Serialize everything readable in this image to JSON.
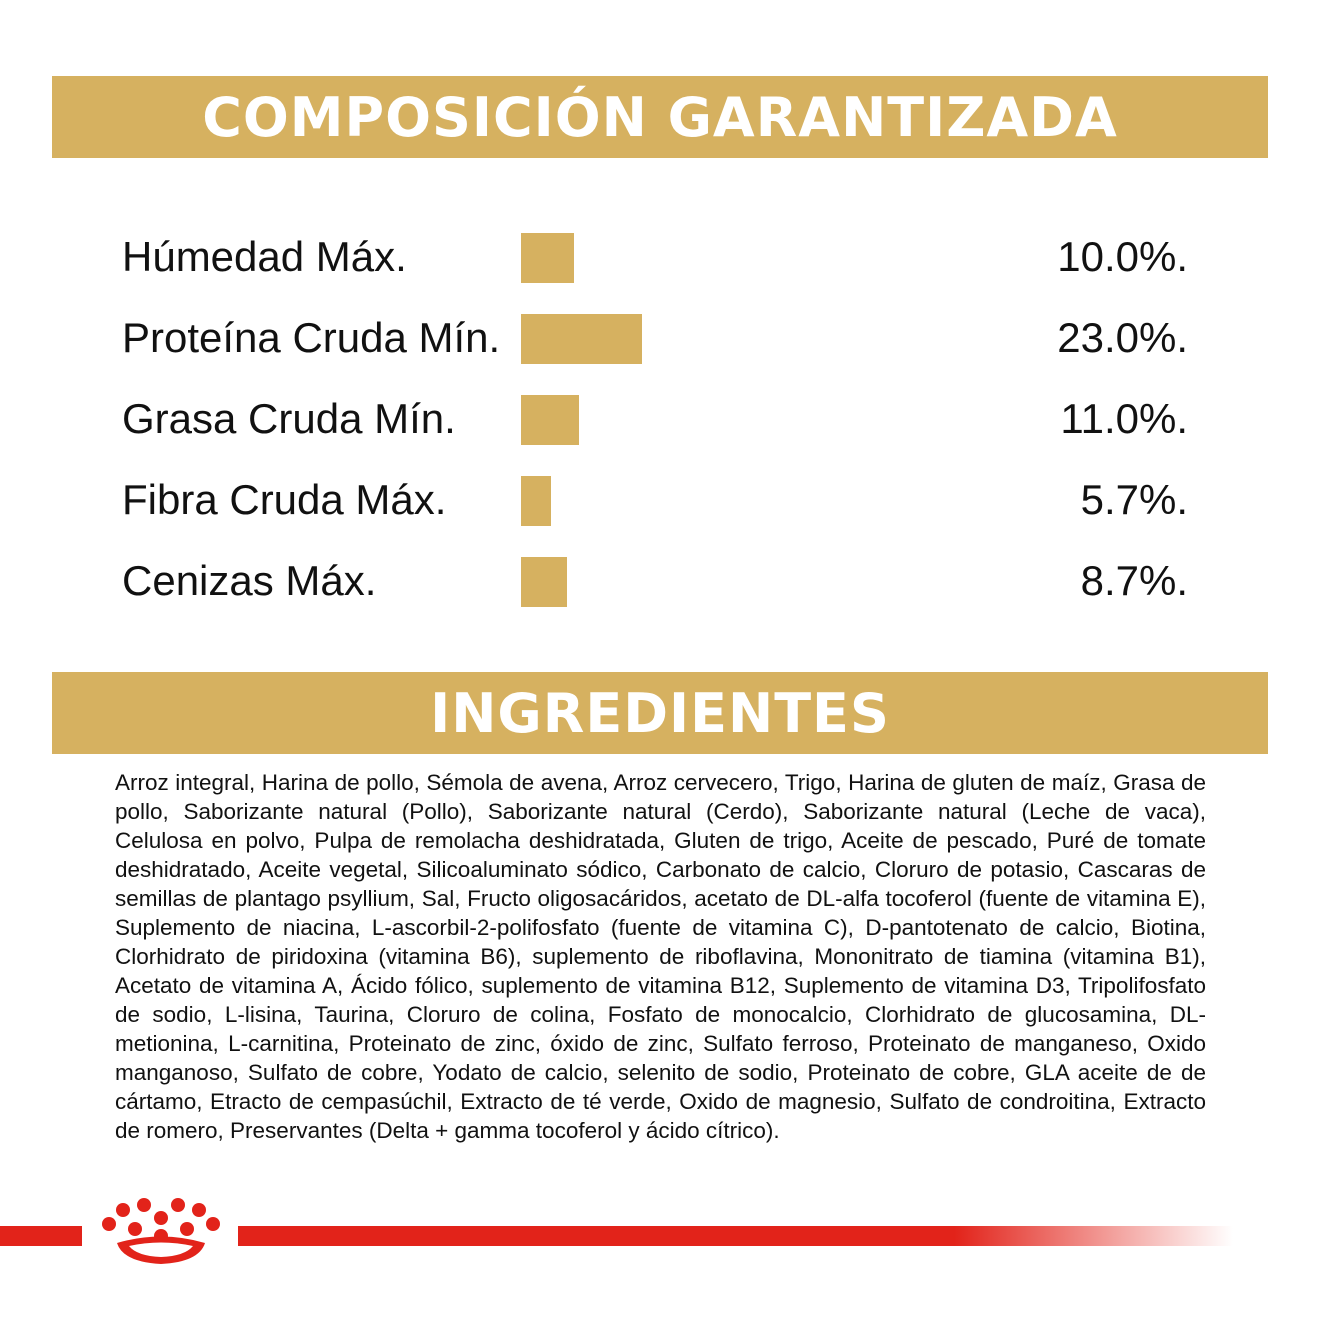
{
  "colors": {
    "gold": "#d6b160",
    "red": "#e2231a",
    "text": "#111111"
  },
  "composition": {
    "title": "COMPOSICIÓN GARANTIZADA",
    "rows": [
      {
        "label": "Húmedad Máx.",
        "value_text": "10.0%.",
        "value": 10.0
      },
      {
        "label": "Proteína Cruda Mín.",
        "value_text": "23.0%.",
        "value": 23.0
      },
      {
        "label": "Grasa Cruda Mín.",
        "value_text": "11.0%.",
        "value": 11.0
      },
      {
        "label": "Fibra Cruda Máx.",
        "value_text": "5.7%.",
        "value": 5.7
      },
      {
        "label": "Cenizas Máx.",
        "value_text": "8.7%.",
        "value": 8.7
      }
    ]
  },
  "ingredients": {
    "title": "INGREDIENTES",
    "text": "Arroz integral, Harina de pollo, Sémola de avena, Arroz cervecero, Trigo, Harina de gluten de maíz, Grasa de pollo, Saborizante natural (Pollo), Saborizante natural (Cerdo), Saborizante natural (Leche de vaca), Celulosa en polvo, Pulpa de remolacha deshidratada, Gluten de trigo, Aceite de pescado, Puré de tomate deshidratado, Aceite vegetal, Silicoaluminato sódico, Carbonato de calcio, Cloruro de potasio, Cascaras de semillas de plantago psyllium, Sal, Fructo oligosacáridos, acetato de DL-alfa tocoferol (fuente de vitamina E), Suplemento de niacina, L-ascorbil-2-polifosfato (fuente de vitamina C), D-pantotenato de calcio, Biotina, Clorhidrato de piridoxina (vitamina B6), suplemento de riboflavina, Mononitrato de tiamina (vitamina B1), Acetato de vitamina A, Ácido fólico, suplemento de vitamina B12, Suplemento de vitamina D3, Tripolifosfato de sodio, L-lisina, Taurina, Cloruro de colina, Fosfato de monocalcio, Clorhidrato de glucosamina, DL-metionina, L-carnitina, Proteinato de zinc, óxido de zinc, Sulfato ferroso, Proteinato de manganeso, Oxido manganoso, Sulfato de cobre, Yodato de calcio, selenito de sodio, Proteinato de cobre, GLA aceite de de cártamo, Etracto de cempasúchil, Extracto de té verde, Oxido de magnesio, Sulfato de condroitina, Extracto de romero, Preservantes (Delta + gamma tocoferol y ácido cítrico)."
  },
  "logo": {
    "icon": "royal-canin-crown-icon"
  }
}
